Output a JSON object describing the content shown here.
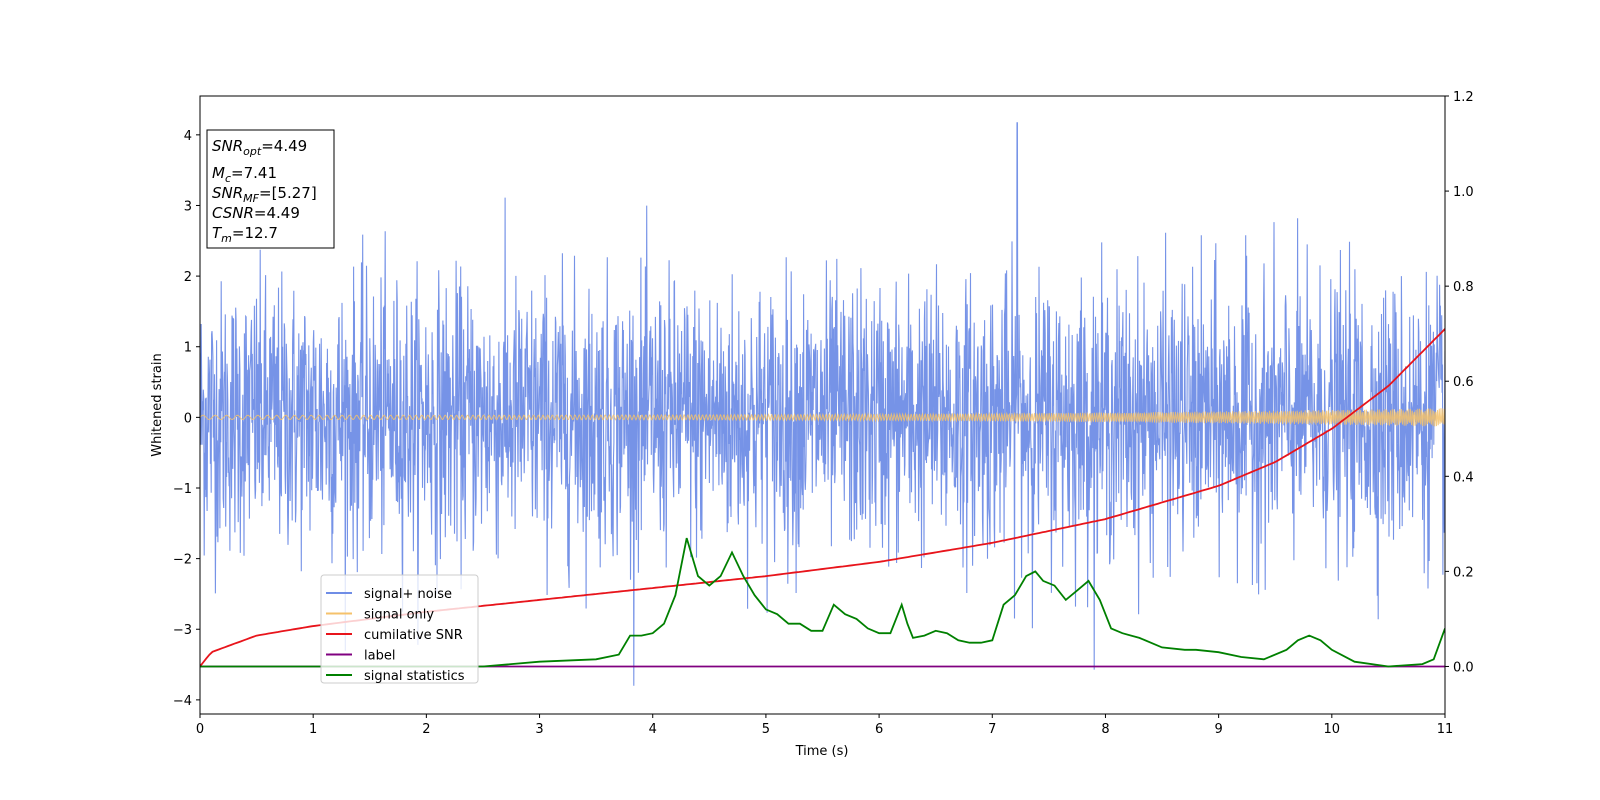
{
  "chart_data": {
    "type": "line",
    "xlabel": "Time (s)",
    "ylabel": "Whitened strain",
    "xlim": [
      0,
      11
    ],
    "ylim": [
      -4.2,
      4.55
    ],
    "y2lim": [
      -0.1,
      1.2
    ],
    "xticks": [
      "0",
      "1",
      "2",
      "3",
      "4",
      "5",
      "6",
      "7",
      "8",
      "9",
      "10",
      "11"
    ],
    "yticks": [
      "4",
      "3",
      "2",
      "1",
      "0",
      "−1",
      "−2",
      "−3",
      "−4"
    ],
    "y2ticks": [
      "1.2",
      "1.0",
      "0.8",
      "0.6",
      "0.4",
      "0.2",
      "0.0"
    ],
    "grid": false,
    "legend_position": "lower-left",
    "annotation": {
      "snr_opt": "=4.49",
      "mc": "=7.41",
      "snr_mf": "=[5.27]",
      "csnr": "=4.49",
      "tm": "=12.7"
    },
    "series": [
      {
        "name": "signal+ noise",
        "color": "#6f8de6",
        "axis": "left",
        "description_values": "stationary whitened noise, sd ~1, peaks up to ~4.2 near t=7.2"
      },
      {
        "name": "signal only",
        "color": "#f5c26b",
        "axis": "left",
        "amplitude_start": 0.03,
        "amplitude_end": 0.13
      },
      {
        "name": "cumilative SNR",
        "color": "#e8141b",
        "axis": "right",
        "x": [
          0,
          0.1,
          0.5,
          1,
          2,
          3,
          4,
          5,
          6,
          7,
          8,
          9,
          9.5,
          10,
          10.5,
          11
        ],
        "y": [
          0.0,
          0.03,
          0.065,
          0.085,
          0.115,
          0.14,
          0.165,
          0.19,
          0.22,
          0.26,
          0.31,
          0.38,
          0.43,
          0.5,
          0.59,
          0.71
        ]
      },
      {
        "name": "label",
        "color": "#800080",
        "axis": "right",
        "x": [
          0,
          11
        ],
        "y": [
          0.0,
          0.0
        ]
      },
      {
        "name": "signal statistics",
        "color": "#008000",
        "axis": "right",
        "x": [
          0,
          2.5,
          3.0,
          3.5,
          3.7,
          3.8,
          3.9,
          4.0,
          4.1,
          4.2,
          4.3,
          4.4,
          4.5,
          4.6,
          4.7,
          4.8,
          4.9,
          5.0,
          5.1,
          5.2,
          5.3,
          5.4,
          5.5,
          5.6,
          5.7,
          5.8,
          5.9,
          6.0,
          6.1,
          6.2,
          6.25,
          6.3,
          6.4,
          6.5,
          6.6,
          6.7,
          6.8,
          6.9,
          7.0,
          7.1,
          7.2,
          7.3,
          7.38,
          7.45,
          7.55,
          7.65,
          7.75,
          7.85,
          7.95,
          8.05,
          8.15,
          8.3,
          8.5,
          8.7,
          8.8,
          9.0,
          9.2,
          9.4,
          9.6,
          9.7,
          9.8,
          9.9,
          10.0,
          10.2,
          10.5,
          10.8,
          10.9,
          11.0
        ],
        "y": [
          0.0,
          0.0,
          0.01,
          0.015,
          0.025,
          0.065,
          0.065,
          0.07,
          0.09,
          0.15,
          0.27,
          0.19,
          0.17,
          0.19,
          0.24,
          0.19,
          0.15,
          0.12,
          0.11,
          0.09,
          0.09,
          0.075,
          0.075,
          0.13,
          0.11,
          0.1,
          0.08,
          0.07,
          0.07,
          0.13,
          0.09,
          0.06,
          0.065,
          0.075,
          0.07,
          0.055,
          0.05,
          0.05,
          0.055,
          0.13,
          0.15,
          0.19,
          0.2,
          0.18,
          0.17,
          0.14,
          0.16,
          0.18,
          0.14,
          0.08,
          0.07,
          0.06,
          0.04,
          0.035,
          0.035,
          0.03,
          0.02,
          0.015,
          0.035,
          0.055,
          0.065,
          0.055,
          0.035,
          0.01,
          0.0,
          0.005,
          0.015,
          0.08
        ]
      }
    ]
  }
}
